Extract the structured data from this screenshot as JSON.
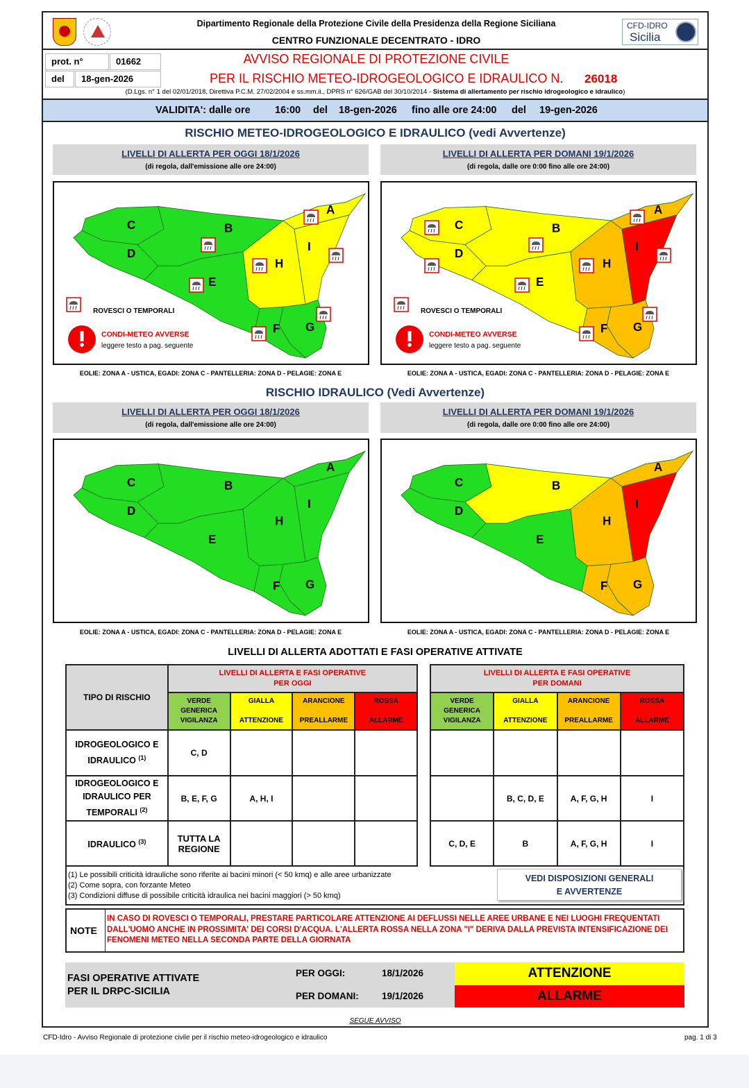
{
  "header": {
    "dept": "Dipartimento Regionale della Protezione Civile della Presidenza della Regione Siciliana",
    "centre": "CENTRO FUNZIONALE DECENTRATO - IDRO",
    "logo_right_line1": "CFD-IDRO",
    "logo_right_line2": "Sicilia"
  },
  "prot": {
    "label": "prot. n°",
    "value": "01662",
    "del_label": "del",
    "del_value": "18-gen-2026"
  },
  "title": {
    "line1": "AVVISO REGIONALE DI PROTEZIONE CIVILE",
    "line2": "PER IL RISCHIO METEO-IDROGEOLOGICO E IDRAULICO N.",
    "number": "26018",
    "refs": "(D.Lgs. n° 1 del 02/01/2018, Direttiva P.C.M. 27/02/2004 e ss.mm.ii., DPRS n° 626/GAB del 30/10/2014 - ",
    "refs_bold": "Sistema di allertamento per rischio idrogeologico e idraulico",
    "refs_end": ")"
  },
  "validity": {
    "label": "VALIDITA': dalle ore",
    "from_time": "16:00",
    "del1": "del",
    "from_date": "18-gen-2026",
    "until": "fino alle ore 24:00",
    "del2": "del",
    "to_date": "19-gen-2026"
  },
  "section1": {
    "title": "RISCHIO METEO-IDROGEOLOGICO E IDRAULICO (vedi Avvertenze)"
  },
  "section2": {
    "title": "RISCHIO IDRAULICO (Vedi Avvertenze)"
  },
  "panels": {
    "today_title": "LIVELLI DI ALLERTA PER OGGI 18/1/2026",
    "today_sub": "(di regola, dall'emissione alle ore 24:00)",
    "tomorrow_title": "LIVELLI DI ALLERTA PER DOMANI 19/1/2026",
    "tomorrow_sub": "(di regola, dalle ore 0:00 fino alle ore 24:00)",
    "islands": "EOLIE: ZONA A - USTICA, EGADI: ZONA C - PANTELLERIA: ZONA D - PELAGIE: ZONA E"
  },
  "legend": {
    "storms": "ROVESCI O TEMPORALI",
    "adverse": "CONDI-METEO AVVERSE",
    "adverse_sub": "leggere testo a pag. seguente"
  },
  "colors": {
    "verde": "#22dd22",
    "gialla": "#ffff00",
    "arancione": "#ffc000",
    "rossa": "#ff0000"
  },
  "maps": {
    "meteo_today": {
      "A": "gialla",
      "B": "verde",
      "C": "verde",
      "D": "verde",
      "E": "verde",
      "F": "verde",
      "G": "verde",
      "H": "gialla",
      "I": "gialla"
    },
    "meteo_tomorrow": {
      "A": "arancione",
      "B": "gialla",
      "C": "gialla",
      "D": "gialla",
      "E": "gialla",
      "F": "arancione",
      "G": "arancione",
      "H": "arancione",
      "I": "rossa"
    },
    "idro_today": {
      "A": "verde",
      "B": "verde",
      "C": "verde",
      "D": "verde",
      "E": "verde",
      "F": "verde",
      "G": "verde",
      "H": "verde",
      "I": "verde"
    },
    "idro_tomorrow": {
      "A": "arancione",
      "B": "gialla",
      "C": "verde",
      "D": "verde",
      "E": "verde",
      "F": "arancione",
      "G": "arancione",
      "H": "arancione",
      "I": "rossa"
    }
  },
  "table": {
    "title": "LIVELLI DI ALLERTA ADOTTATI E FASI OPERATIVE ATTIVATE",
    "type_header": "TIPO DI RISCHIO",
    "today_header": [
      "LIVELLI DI ALLERTA E FASI OPERATIVE",
      "PER OGGI"
    ],
    "tomorrow_header": [
      "LIVELLI DI ALLERTA E FASI OPERATIVE",
      "PER DOMANI"
    ],
    "levels": [
      {
        "name": "VERDE",
        "phase": "GENERICA VIGILANZA"
      },
      {
        "name": "GIALLA",
        "phase": "ATTENZIONE"
      },
      {
        "name": "ARANCIONE",
        "phase": "PREALLARME"
      },
      {
        "name": "ROSSA",
        "phase": "ALLARME"
      }
    ],
    "rows": [
      {
        "type": "IDROGEOLOGICO E IDRAULICO",
        "sup": "(1)",
        "today": [
          "C, D",
          "",
          "",
          ""
        ],
        "tomorrow": [
          "",
          "",
          "",
          ""
        ]
      },
      {
        "type": "IDROGEOLOGICO E IDRAULICO PER TEMPORALI",
        "sup": "(2)",
        "today": [
          "B, E, F, G",
          "A, H, I",
          "",
          ""
        ],
        "tomorrow": [
          "",
          "B, C, D, E",
          "A, F, G, H",
          "I"
        ]
      },
      {
        "type": "IDRAULICO",
        "sup": "(3)",
        "today": [
          "TUTTA LA REGIONE",
          "",
          "",
          ""
        ],
        "tomorrow": [
          "C, D, E",
          "B",
          "A, F, G, H",
          "I"
        ]
      }
    ],
    "notes": [
      "(1) Le possibili criticità idrauliche sono riferite ai bacini minori (< 50 kmq) e alle aree urbanizzate",
      "(2) Come sopra, con forzante Meteo",
      "(3) Condizioni diffuse di possibile criticità idraulica nei bacini maggiori (> 50 kmq)"
    ],
    "see_button": [
      "VEDI DISPOSIZIONI GENERALI",
      "E AVVERTENZE"
    ]
  },
  "note": {
    "label": "NOTE",
    "text": "IN CASO DI ROVESCI O TEMPORALI, PRESTARE PARTICOLARE ATTENZIONE AI DEFLUSSI NELLE AREE URBANE E NEI LUOGHI FREQUENTATI DALL'UOMO ANCHE IN PROSSIMITA' DEI CORSI D'ACQUA. L'ALLERTA ROSSA NELLA ZONA \"I\" DERIVA DALLA PREVISTA INTENSIFICAZIONE DEI FENOMENI METEO NELLA SECONDA PARTE DELLA GIORNATA"
  },
  "phases": {
    "label1": "FASI OPERATIVE ATTIVATE",
    "label2": "PER IL DRPC-SICILIA",
    "today_label": "PER OGGI:",
    "today_date": "18/1/2026",
    "today_phase": "ATTENZIONE",
    "tomorrow_label": "PER DOMANI:",
    "tomorrow_date": "19/1/2026",
    "tomorrow_phase": "ALLARME"
  },
  "footer": {
    "continue": "SEGUE AVVISO",
    "left": "CFD-Idro - Avviso Regionale di protezione civile per il rischio meteo-idrogeologico e idraulico",
    "page": "pag. 1 di 3"
  }
}
